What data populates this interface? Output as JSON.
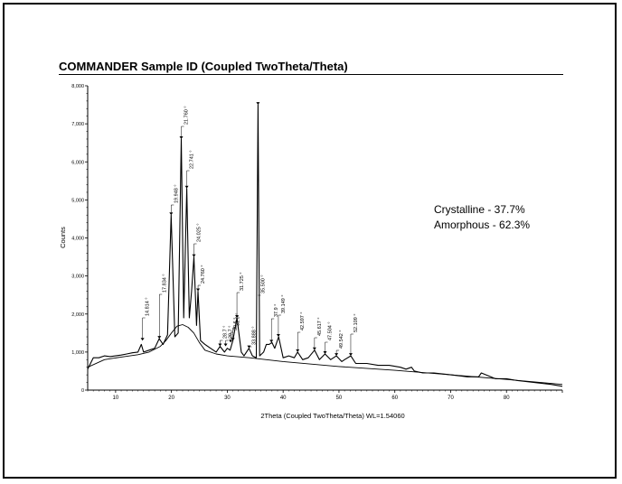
{
  "chart_data": {
    "type": "line",
    "title": "COMMANDER Sample ID (Coupled TwoTheta/Theta)",
    "xlabel": "2Theta (Coupled TwoTheta/Theta) WL=1.54060",
    "ylabel": "Counts",
    "xlim": [
      5,
      90
    ],
    "ylim": [
      0,
      8000
    ],
    "x_ticks": [
      10,
      20,
      30,
      40,
      50,
      60,
      70,
      80
    ],
    "y_ticks": [
      0,
      1000,
      2000,
      3000,
      4000,
      5000,
      6000,
      7000,
      8000
    ],
    "y_tick_labels": [
      "0",
      "1,000",
      "2,000",
      "3,000",
      "4,000",
      "5,000",
      "6,000",
      "7,000",
      "8,000"
    ],
    "grid": false,
    "series": [
      {
        "name": "",
        "style": "measured",
        "x": [
          5,
          6,
          7,
          8,
          9,
          10,
          11,
          12,
          13,
          14,
          14.6,
          15,
          16,
          17,
          17.8,
          18.5,
          19.3,
          19.95,
          20.6,
          21.2,
          21.76,
          22.2,
          22.74,
          23.2,
          23.6,
          24.03,
          24.5,
          24.76,
          25.2,
          26,
          27,
          28,
          28.7,
          29.5,
          30,
          30.5,
          31,
          31.725,
          32.5,
          33,
          33.888,
          34.5,
          35.2,
          35.5,
          35.8,
          36.5,
          37,
          37.5,
          38,
          38.5,
          39.2,
          40,
          41,
          42,
          42.597,
          43.5,
          44.5,
          45.617,
          46.5,
          47.504,
          48.5,
          49.542,
          50.5,
          51,
          52.109,
          53,
          55,
          57,
          59,
          61,
          62,
          63,
          63.5,
          65,
          67,
          70,
          73,
          75,
          75.5,
          78,
          80,
          82,
          85,
          88,
          90
        ],
        "y": [
          550,
          850,
          850,
          900,
          880,
          900,
          920,
          950,
          980,
          1000,
          1200,
          1000,
          1050,
          1100,
          1350,
          1200,
          1450,
          4600,
          1400,
          1500,
          6600,
          1900,
          5300,
          1900,
          2600,
          3500,
          1700,
          2600,
          1300,
          1200,
          1100,
          1000,
          1150,
          1000,
          1100,
          1050,
          1300,
          1900,
          1000,
          900,
          1100,
          900,
          850,
          7500,
          900,
          1000,
          1200,
          1200,
          1250,
          1100,
          1400,
          850,
          900,
          850,
          1000,
          800,
          850,
          1050,
          800,
          950,
          800,
          900,
          750,
          800,
          900,
          700,
          700,
          650,
          650,
          600,
          550,
          600,
          500,
          450,
          450,
          400,
          350,
          350,
          450,
          300,
          300,
          250,
          200,
          150,
          100
        ]
      },
      {
        "name": "",
        "style": "background",
        "x": [
          5,
          8,
          11,
          14,
          16,
          18,
          19,
          20,
          21,
          22,
          23,
          24,
          25,
          26,
          28,
          30,
          34,
          40,
          50,
          60,
          70,
          80,
          90
        ],
        "y": [
          600,
          800,
          870,
          930,
          1000,
          1150,
          1300,
          1500,
          1680,
          1720,
          1650,
          1500,
          1250,
          1050,
          950,
          900,
          850,
          750,
          620,
          520,
          400,
          280,
          150
        ]
      }
    ],
    "peaks": [
      {
        "x": 14.814,
        "label": "14.814 °",
        "y": 1300
      },
      {
        "x": 17.834,
        "label": "17.834 °",
        "y": 1350
      },
      {
        "x": 19.948,
        "label": "19.948 °",
        "y": 4600
      },
      {
        "x": 21.76,
        "label": "21.760 °",
        "y": 6600
      },
      {
        "x": 22.741,
        "label": "22.741 °",
        "y": 5300
      },
      {
        "x": 24.025,
        "label": "24.025 °",
        "y": 3500
      },
      {
        "x": 24.76,
        "label": "24.760 °",
        "y": 2600
      },
      {
        "x": 28.7,
        "label": "28.7 °",
        "y": 1150
      },
      {
        "x": 29.7,
        "label": "29.7 °",
        "y": 1150
      },
      {
        "x": 30.6,
        "label": "30.6 °",
        "y": 1250
      },
      {
        "x": 31.0,
        "label": "31.0 °",
        "y": 1300
      },
      {
        "x": 31.725,
        "label": "31.725 °",
        "y": 1900
      },
      {
        "x": 33.888,
        "label": "33.888 °",
        "y": 1100
      },
      {
        "x": 35.5,
        "label": "35.500 °",
        "y": 7500
      },
      {
        "x": 37.9,
        "label": "37.9 °",
        "y": 1250
      },
      {
        "x": 39.149,
        "label": "39.149 °",
        "y": 1400
      },
      {
        "x": 42.597,
        "label": "42.597 °",
        "y": 1000
      },
      {
        "x": 45.617,
        "label": "45.617 °",
        "y": 1050
      },
      {
        "x": 47.504,
        "label": "47.504 °",
        "y": 950
      },
      {
        "x": 49.542,
        "label": "49.542 °",
        "y": 900
      },
      {
        "x": 52.109,
        "label": "52.109 °",
        "y": 900
      }
    ],
    "annotations": [
      "Crystalline - 37.7%",
      "Amorphous - 62.3%"
    ]
  }
}
